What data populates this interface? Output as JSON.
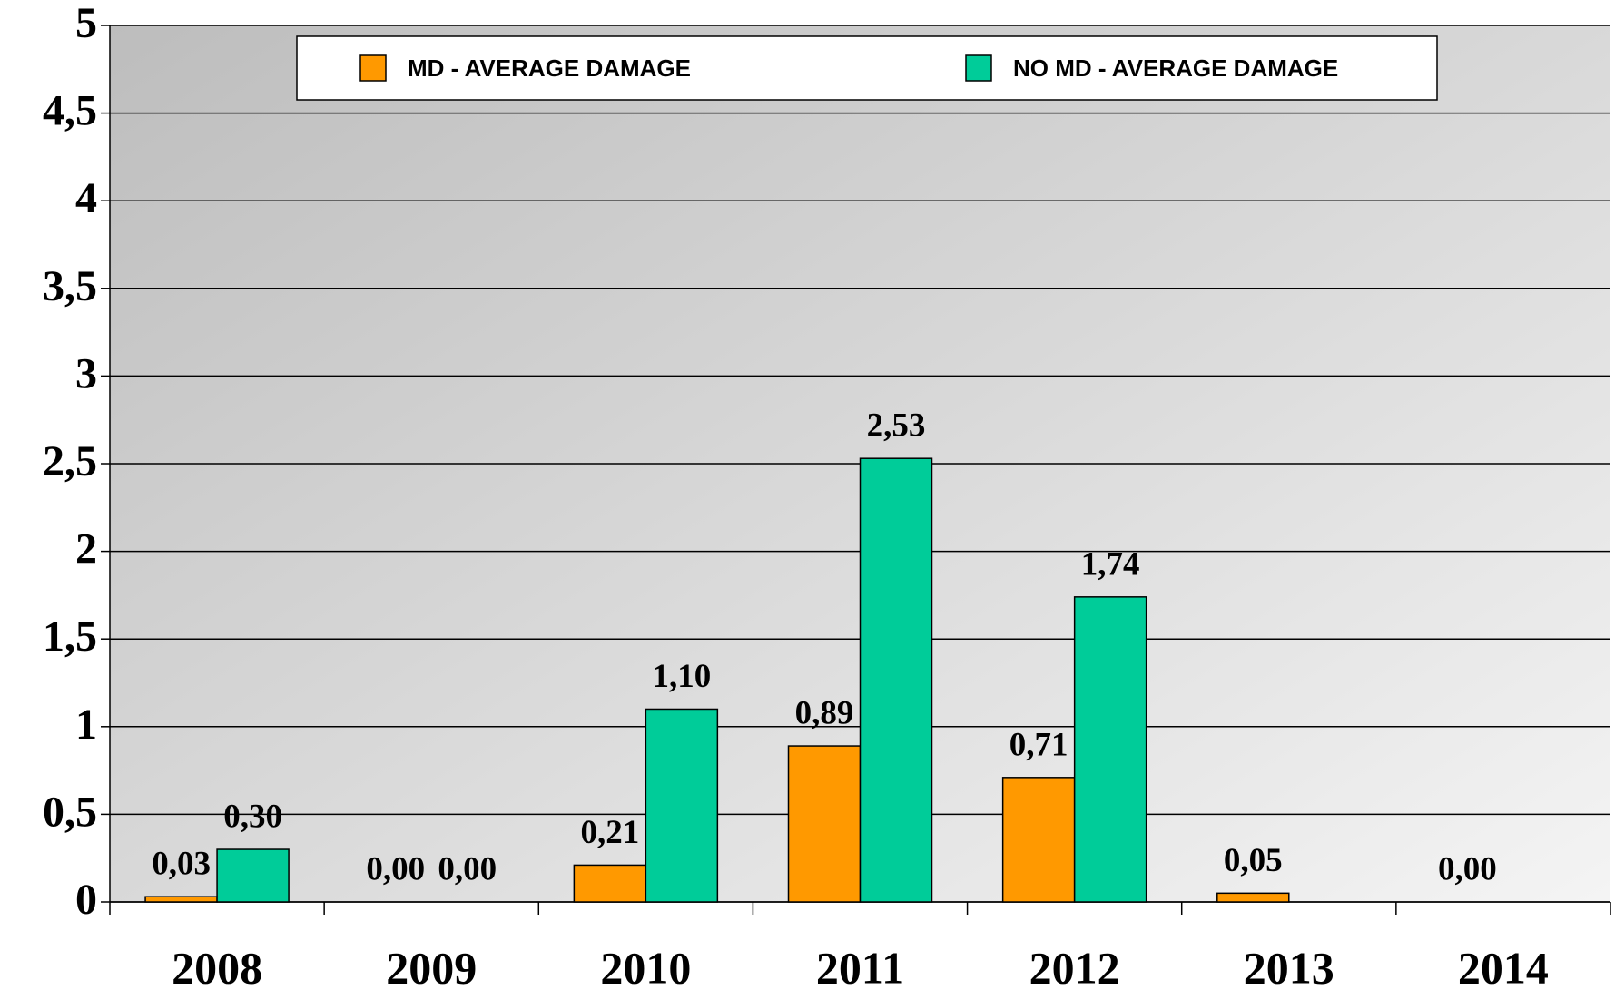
{
  "chart_data": {
    "type": "bar",
    "categories": [
      "2008",
      "2009",
      "2010",
      "2011",
      "2012",
      "2013",
      "2014"
    ],
    "series": [
      {
        "name": "MD - AVERAGE DAMAGE",
        "color": "#ff9900",
        "values": [
          0.03,
          0.0,
          0.21,
          0.89,
          0.71,
          0.05,
          0.0
        ],
        "value_labels": [
          "0,03",
          "0,00",
          "0,21",
          "0,89",
          "0,71",
          "0,05",
          "0,00"
        ]
      },
      {
        "name": "NO MD - AVERAGE DAMAGE",
        "color": "#00cc99",
        "values": [
          0.3,
          0.0,
          1.1,
          2.53,
          1.74,
          null,
          null
        ],
        "value_labels": [
          "0,30",
          "0,00",
          "1,10",
          "2,53",
          "1,74",
          null,
          null
        ]
      }
    ],
    "ylim": [
      0,
      5
    ],
    "yticks": [
      0,
      {
        "value": 0.5,
        "label": "0,5"
      },
      1,
      {
        "value": 1.5,
        "label": "1,5"
      },
      2,
      {
        "value": 2.5,
        "label": "2,5"
      },
      3,
      {
        "value": 3.5,
        "label": "3,5"
      },
      4,
      {
        "value": 4.5,
        "label": "4,5"
      },
      5
    ],
    "grid": true,
    "legend": "top"
  }
}
